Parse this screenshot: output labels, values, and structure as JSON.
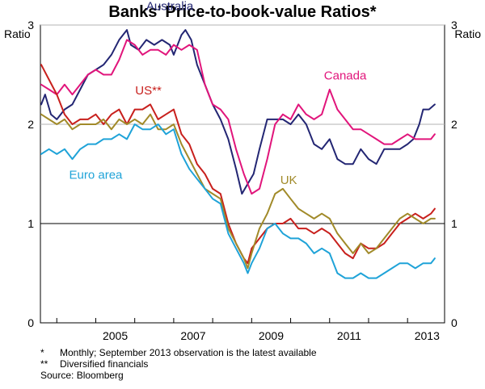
{
  "chart_data": {
    "type": "line",
    "title": "Banks’ Price-to-book-value Ratios*",
    "unit_left": "Ratio",
    "unit_right": "Ratio",
    "ylim": [
      0,
      3.0
    ],
    "yticks": [
      "0",
      "1",
      "2",
      "3"
    ],
    "xlim": [
      2003.58,
      2013.95
    ],
    "xticks": [
      "2005",
      "2007",
      "2009",
      "2011",
      "2013"
    ],
    "reference_line": 1,
    "series": [
      {
        "name": "Australia",
        "color": "#232673",
        "x": [
          2003.6,
          2003.7,
          2003.85,
          2004.0,
          2004.2,
          2004.4,
          2004.6,
          2004.8,
          2005.0,
          2005.2,
          2005.4,
          2005.6,
          2005.8,
          2005.9,
          2006.1,
          2006.3,
          2006.5,
          2006.7,
          2006.9,
          2007.0,
          2007.2,
          2007.3,
          2007.45,
          2007.6,
          2007.8,
          2008.0,
          2008.2,
          2008.4,
          2008.6,
          2008.75,
          2008.9,
          2009.05,
          2009.2,
          2009.4,
          2009.6,
          2009.8,
          2010.0,
          2010.2,
          2010.4,
          2010.6,
          2010.8,
          2011.0,
          2011.2,
          2011.4,
          2011.6,
          2011.8,
          2012.0,
          2012.2,
          2012.4,
          2012.6,
          2012.8,
          2013.0,
          2013.15,
          2013.3,
          2013.4,
          2013.55,
          2013.7
        ],
        "y": [
          2.2,
          2.3,
          2.1,
          2.05,
          2.15,
          2.2,
          2.35,
          2.5,
          2.55,
          2.6,
          2.7,
          2.85,
          2.95,
          2.8,
          2.75,
          2.85,
          2.8,
          2.85,
          2.8,
          2.7,
          2.9,
          2.95,
          2.85,
          2.6,
          2.4,
          2.2,
          2.05,
          1.85,
          1.55,
          1.3,
          1.4,
          1.5,
          1.75,
          2.05,
          2.05,
          2.05,
          2.0,
          2.1,
          2.0,
          1.8,
          1.75,
          1.85,
          1.65,
          1.6,
          1.6,
          1.75,
          1.65,
          1.6,
          1.75,
          1.75,
          1.75,
          1.8,
          1.85,
          2.0,
          2.15,
          2.15,
          2.2
        ]
      },
      {
        "name": "Canada",
        "color": "#e1157b",
        "x": [
          2003.6,
          2003.8,
          2004.0,
          2004.2,
          2004.4,
          2004.6,
          2004.8,
          2005.0,
          2005.2,
          2005.4,
          2005.6,
          2005.8,
          2006.0,
          2006.2,
          2006.4,
          2006.6,
          2006.8,
          2007.0,
          2007.2,
          2007.4,
          2007.6,
          2007.8,
          2008.0,
          2008.2,
          2008.4,
          2008.6,
          2008.8,
          2009.0,
          2009.2,
          2009.4,
          2009.6,
          2009.8,
          2010.0,
          2010.2,
          2010.4,
          2010.6,
          2010.8,
          2011.0,
          2011.2,
          2011.4,
          2011.6,
          2011.8,
          2012.0,
          2012.2,
          2012.4,
          2012.6,
          2012.8,
          2013.0,
          2013.2,
          2013.4,
          2013.6,
          2013.7
        ],
        "y": [
          2.4,
          2.35,
          2.3,
          2.4,
          2.3,
          2.4,
          2.5,
          2.55,
          2.5,
          2.5,
          2.65,
          2.85,
          2.8,
          2.7,
          2.75,
          2.75,
          2.7,
          2.8,
          2.75,
          2.8,
          2.75,
          2.4,
          2.2,
          2.15,
          2.05,
          1.75,
          1.5,
          1.3,
          1.35,
          1.65,
          2.0,
          2.1,
          2.05,
          2.2,
          2.1,
          2.05,
          2.1,
          2.35,
          2.15,
          2.05,
          1.95,
          1.95,
          1.9,
          1.85,
          1.8,
          1.8,
          1.85,
          1.9,
          1.85,
          1.85,
          1.85,
          1.9
        ]
      },
      {
        "name": "US**",
        "color": "#c8201d",
        "x": [
          2003.6,
          2003.8,
          2004.0,
          2004.2,
          2004.4,
          2004.6,
          2004.8,
          2005.0,
          2005.2,
          2005.4,
          2005.6,
          2005.8,
          2006.0,
          2006.2,
          2006.4,
          2006.6,
          2006.8,
          2007.0,
          2007.2,
          2007.4,
          2007.6,
          2007.8,
          2008.0,
          2008.2,
          2008.4,
          2008.6,
          2008.8,
          2008.9,
          2009.0,
          2009.2,
          2009.4,
          2009.6,
          2009.8,
          2010.0,
          2010.2,
          2010.4,
          2010.6,
          2010.8,
          2011.0,
          2011.2,
          2011.4,
          2011.6,
          2011.8,
          2012.0,
          2012.2,
          2012.4,
          2012.6,
          2012.8,
          2013.0,
          2013.2,
          2013.4,
          2013.6,
          2013.7
        ],
        "y": [
          2.6,
          2.45,
          2.3,
          2.1,
          2.0,
          2.05,
          2.05,
          2.1,
          2.0,
          2.1,
          2.15,
          2.0,
          2.15,
          2.15,
          2.2,
          2.05,
          2.1,
          2.15,
          1.9,
          1.8,
          1.6,
          1.5,
          1.35,
          1.3,
          1.0,
          0.8,
          0.65,
          0.6,
          0.75,
          0.85,
          0.95,
          1.0,
          1.0,
          1.05,
          0.95,
          0.95,
          0.9,
          0.95,
          0.9,
          0.8,
          0.7,
          0.65,
          0.8,
          0.75,
          0.75,
          0.8,
          0.9,
          1.0,
          1.05,
          1.1,
          1.05,
          1.1,
          1.15
        ]
      },
      {
        "name": "UK",
        "color": "#a18a29",
        "x": [
          2003.6,
          2003.8,
          2004.0,
          2004.2,
          2004.4,
          2004.6,
          2004.8,
          2005.0,
          2005.2,
          2005.4,
          2005.6,
          2005.8,
          2006.0,
          2006.2,
          2006.4,
          2006.6,
          2006.8,
          2007.0,
          2007.2,
          2007.4,
          2007.6,
          2007.8,
          2008.0,
          2008.2,
          2008.4,
          2008.6,
          2008.8,
          2008.9,
          2009.0,
          2009.2,
          2009.4,
          2009.6,
          2009.8,
          2010.0,
          2010.2,
          2010.4,
          2010.6,
          2010.8,
          2011.0,
          2011.2,
          2011.4,
          2011.6,
          2011.8,
          2012.0,
          2012.2,
          2012.4,
          2012.6,
          2012.8,
          2013.0,
          2013.2,
          2013.4,
          2013.6,
          2013.7
        ],
        "y": [
          2.1,
          2.05,
          2.0,
          2.05,
          1.95,
          2.0,
          2.0,
          2.0,
          2.05,
          1.95,
          2.05,
          2.0,
          2.05,
          2.0,
          2.1,
          1.95,
          1.95,
          2.0,
          1.8,
          1.65,
          1.5,
          1.35,
          1.3,
          1.25,
          0.95,
          0.8,
          0.65,
          0.55,
          0.7,
          0.95,
          1.1,
          1.3,
          1.35,
          1.25,
          1.15,
          1.1,
          1.05,
          1.1,
          1.05,
          0.9,
          0.8,
          0.7,
          0.8,
          0.7,
          0.75,
          0.85,
          0.95,
          1.05,
          1.1,
          1.05,
          1.0,
          1.05,
          1.05
        ]
      },
      {
        "name": "Euro area",
        "color": "#1fa3d8",
        "x": [
          2003.6,
          2003.8,
          2004.0,
          2004.2,
          2004.4,
          2004.6,
          2004.8,
          2005.0,
          2005.2,
          2005.4,
          2005.6,
          2005.8,
          2006.0,
          2006.2,
          2006.4,
          2006.6,
          2006.8,
          2007.0,
          2007.2,
          2007.4,
          2007.6,
          2007.8,
          2008.0,
          2008.2,
          2008.4,
          2008.6,
          2008.8,
          2008.9,
          2009.0,
          2009.2,
          2009.4,
          2009.6,
          2009.8,
          2010.0,
          2010.2,
          2010.4,
          2010.6,
          2010.8,
          2011.0,
          2011.2,
          2011.4,
          2011.6,
          2011.8,
          2012.0,
          2012.2,
          2012.4,
          2012.6,
          2012.8,
          2013.0,
          2013.2,
          2013.4,
          2013.6,
          2013.7
        ],
        "y": [
          1.7,
          1.75,
          1.7,
          1.75,
          1.65,
          1.75,
          1.8,
          1.8,
          1.85,
          1.85,
          1.9,
          1.85,
          2.0,
          1.95,
          1.95,
          2.0,
          1.9,
          1.95,
          1.7,
          1.55,
          1.45,
          1.35,
          1.25,
          1.2,
          0.9,
          0.75,
          0.6,
          0.5,
          0.6,
          0.75,
          0.95,
          1.0,
          0.9,
          0.85,
          0.85,
          0.8,
          0.7,
          0.75,
          0.7,
          0.5,
          0.45,
          0.45,
          0.5,
          0.45,
          0.45,
          0.5,
          0.55,
          0.6,
          0.6,
          0.55,
          0.6,
          0.6,
          0.65
        ]
      }
    ],
    "annotations": [
      {
        "text": "Australia",
        "series": "Australia",
        "x": 2006.9,
        "y": 3.15
      },
      {
        "text": "Canada",
        "series": "Canada",
        "x": 2011.4,
        "y": 2.45
      },
      {
        "text": "US**",
        "series": "US**",
        "x": 2006.35,
        "y": 2.3
      },
      {
        "text": "UK",
        "series": "UK",
        "x": 2009.95,
        "y": 1.4
      },
      {
        "text": "Euro area",
        "series": "Euro area",
        "x": 2005.0,
        "y": 1.45
      }
    ]
  },
  "notes": [
    {
      "mark": "*",
      "text": "Monthly; September 2013 observation is the latest available"
    },
    {
      "mark": "**",
      "text": "Diversified financials"
    }
  ],
  "source": "Source: Bloomberg"
}
